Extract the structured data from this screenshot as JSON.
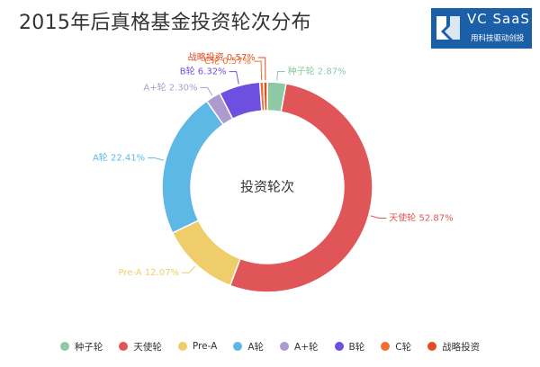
{
  "title": "2015年后真格基金投资轮次分布",
  "logo": {
    "brand": "VC SaaS",
    "tagline": "用科技驱动创投"
  },
  "chart_data": {
    "type": "pie",
    "title": "2015年后真格基金投资轮次分布",
    "center_label": "投资轮次",
    "legend_position": "bottom",
    "label_format": "{name} {value}%",
    "slices": [
      {
        "name": "种子轮",
        "value": 2.87,
        "label": "种子轮 2.87%",
        "color": "#8cc9a4"
      },
      {
        "name": "天使轮",
        "value": 52.87,
        "label": "天使轮 52.87%",
        "color": "#df5558"
      },
      {
        "name": "Pre-A",
        "value": 12.07,
        "label": "Pre-A 12.07%",
        "color": "#f0cd6b"
      },
      {
        "name": "A轮",
        "value": 22.41,
        "label": "A轮 22.41%",
        "color": "#5db8e6"
      },
      {
        "name": "A+轮",
        "value": 2.3,
        "label": "A+轮 2.30%",
        "color": "#ad9bd0"
      },
      {
        "name": "B轮",
        "value": 6.32,
        "label": "B轮 6.32%",
        "color": "#6f4fe0"
      },
      {
        "name": "C轮",
        "value": 0.57,
        "label": "C轮 0.57%",
        "color": "#f06f2c"
      },
      {
        "name": "战略投资",
        "value": 0.57,
        "label": "战略投资 0.57%",
        "color": "#e34b22"
      }
    ]
  }
}
